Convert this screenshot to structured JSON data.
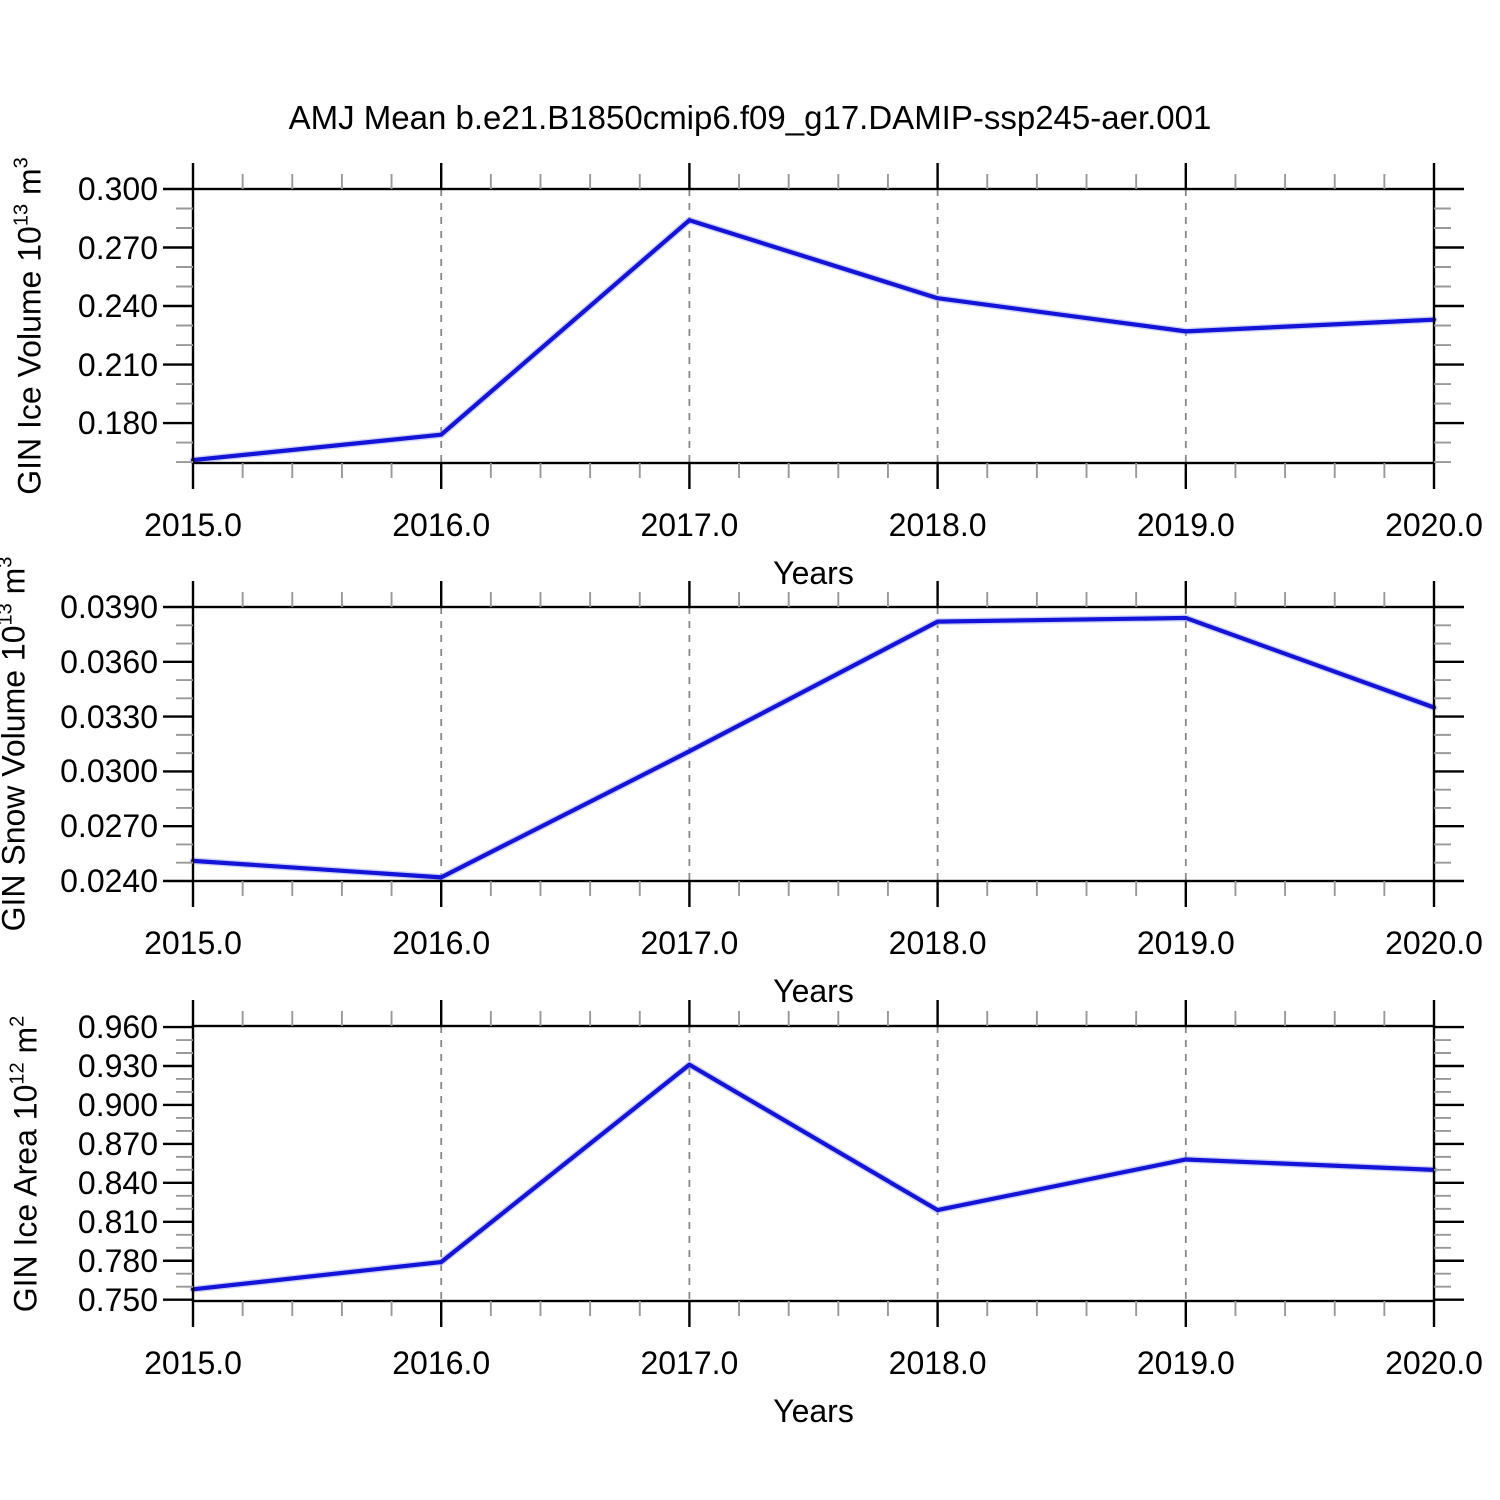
{
  "title": "AMJ Mean b.e21.B1850cmip6.f09_g17.DAMIP-ssp245-aer.001",
  "line_color": "#1414d8",
  "line_halo_color": "#a8aef2",
  "grid_color": "#888888",
  "axis_color": "#000000",
  "minor_tick_color": "#999999",
  "x_tick_labels": [
    "2015.0",
    "2016.0",
    "2017.0",
    "2018.0",
    "2019.0",
    "2020.0"
  ],
  "chart_data": [
    {
      "type": "line",
      "ylabel": "GIN Ice Volume 10^13 m^3",
      "ylabel_parts": [
        {
          "t": "GIN Ice Volume 10"
        },
        {
          "t": "13",
          "sup": true
        },
        {
          "t": " m"
        },
        {
          "t": "3",
          "sup": true
        }
      ],
      "xlabel": "Years",
      "x": [
        2015.0,
        2016.0,
        2017.0,
        2018.0,
        2019.0,
        2020.0
      ],
      "values": [
        0.161,
        0.174,
        0.284,
        0.244,
        0.227,
        0.233
      ],
      "xlim": [
        2015.0,
        2020.0
      ],
      "ylim": [
        0.1595,
        0.3
      ],
      "y_major_ticks": [
        0.18,
        0.21,
        0.24,
        0.27,
        0.3
      ],
      "y_tick_labels": [
        "0.180",
        "0.210",
        "0.240",
        "0.270",
        "0.300"
      ],
      "y_minor_step": 0.01,
      "x_major_step": 1.0,
      "x_minor_step": 0.2,
      "grid_years": [
        2016,
        2017,
        2018,
        2019
      ]
    },
    {
      "type": "line",
      "ylabel": "GIN Snow Volume 10^13 m^3",
      "ylabel_parts": [
        {
          "t": "GIN Snow Volume 10"
        },
        {
          "t": "13",
          "sup": true
        },
        {
          "t": " m"
        },
        {
          "t": "3",
          "sup": true
        }
      ],
      "xlabel": "Years",
      "x": [
        2015.0,
        2016.0,
        2017.0,
        2018.0,
        2019.0,
        2020.0
      ],
      "values": [
        0.0251,
        0.0242,
        0.0311,
        0.0382,
        0.0384,
        0.0335
      ],
      "xlim": [
        2015.0,
        2020.0
      ],
      "ylim": [
        0.024,
        0.039
      ],
      "y_major_ticks": [
        0.024,
        0.027,
        0.03,
        0.033,
        0.036,
        0.039
      ],
      "y_tick_labels": [
        "0.0240",
        "0.0270",
        "0.0300",
        "0.0330",
        "0.0360",
        "0.0390"
      ],
      "y_minor_step": 0.001,
      "x_major_step": 1.0,
      "x_minor_step": 0.2,
      "grid_years": [
        2016,
        2017,
        2018,
        2019
      ]
    },
    {
      "type": "line",
      "ylabel": "GIN Ice Area 10^12 m^2",
      "ylabel_parts": [
        {
          "t": "GIN Ice Area 10"
        },
        {
          "t": "12",
          "sup": true
        },
        {
          "t": " m"
        },
        {
          "t": "2",
          "sup": true
        }
      ],
      "xlabel": "Years",
      "x": [
        2015.0,
        2016.0,
        2017.0,
        2018.0,
        2019.0,
        2020.0
      ],
      "values": [
        0.758,
        0.779,
        0.931,
        0.819,
        0.858,
        0.85
      ],
      "xlim": [
        2015.0,
        2020.0
      ],
      "ylim": [
        0.749,
        0.9608
      ],
      "y_major_ticks": [
        0.75,
        0.78,
        0.81,
        0.84,
        0.87,
        0.9,
        0.93,
        0.96
      ],
      "y_tick_labels": [
        "0.750",
        "0.780",
        "0.810",
        "0.840",
        "0.870",
        "0.900",
        "0.930",
        "0.960"
      ],
      "y_minor_step": 0.01,
      "x_major_step": 1.0,
      "x_minor_step": 0.2,
      "grid_years": [
        2016,
        2017,
        2018,
        2019
      ]
    }
  ]
}
